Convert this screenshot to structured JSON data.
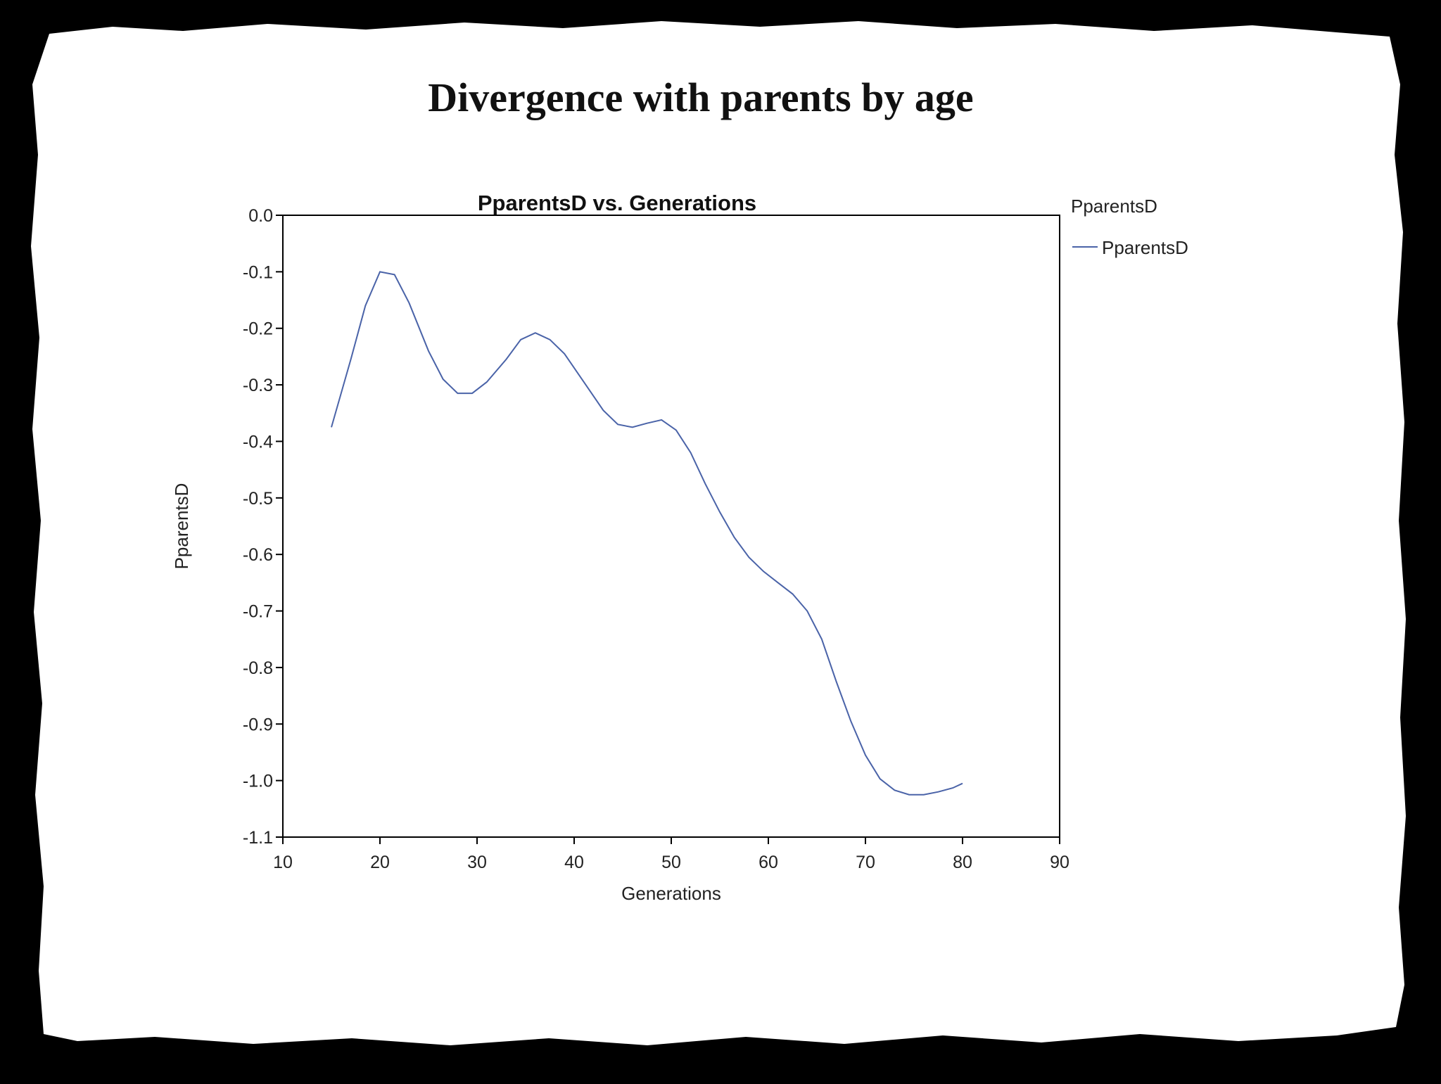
{
  "slide": {
    "title": "Divergence with parents by age"
  },
  "colors": {
    "frame": "#000000",
    "paper": "#ffffff",
    "series_line": "#4a63a8",
    "axis": "#000000"
  },
  "chart_data": {
    "type": "line",
    "title": "PparentsD vs. Generations",
    "xlabel": "Generations",
    "ylabel": "PparentsD",
    "xlim": [
      10,
      90
    ],
    "ylim": [
      -1.1,
      0.0
    ],
    "xticks": [
      "10",
      "20",
      "30",
      "40",
      "50",
      "60",
      "70",
      "80",
      "90"
    ],
    "yticks": [
      "0.0",
      "-0.1",
      "-0.2",
      "-0.3",
      "-0.4",
      "-0.5",
      "-0.6",
      "-0.7",
      "-0.8",
      "-0.9",
      "-1.0",
      "-1.1"
    ],
    "grid": false,
    "legend": {
      "title": "PparentsD",
      "position": "right"
    },
    "series": [
      {
        "name": "PparentsD",
        "x": [
          15,
          17,
          18.5,
          20,
          21.5,
          23,
          25,
          26.5,
          28,
          29.5,
          31,
          33,
          34.5,
          36,
          37.5,
          39,
          41,
          43,
          44.5,
          46,
          47.5,
          49,
          50.5,
          52,
          53.5,
          55,
          56.5,
          58,
          59.5,
          61,
          62.5,
          64,
          65.5,
          67,
          68.5,
          70,
          71.5,
          73,
          74.5,
          76,
          77.5,
          79,
          80
        ],
        "y": [
          -0.375,
          -0.255,
          -0.16,
          -0.1,
          -0.105,
          -0.155,
          -0.24,
          -0.29,
          -0.315,
          -0.315,
          -0.295,
          -0.255,
          -0.22,
          -0.208,
          -0.22,
          -0.245,
          -0.295,
          -0.345,
          -0.37,
          -0.375,
          -0.368,
          -0.362,
          -0.38,
          -0.42,
          -0.475,
          -0.525,
          -0.57,
          -0.605,
          -0.63,
          -0.65,
          -0.67,
          -0.7,
          -0.75,
          -0.825,
          -0.895,
          -0.955,
          -0.997,
          -1.017,
          -1.025,
          -1.025,
          -1.02,
          -1.013,
          -1.005
        ]
      }
    ]
  }
}
